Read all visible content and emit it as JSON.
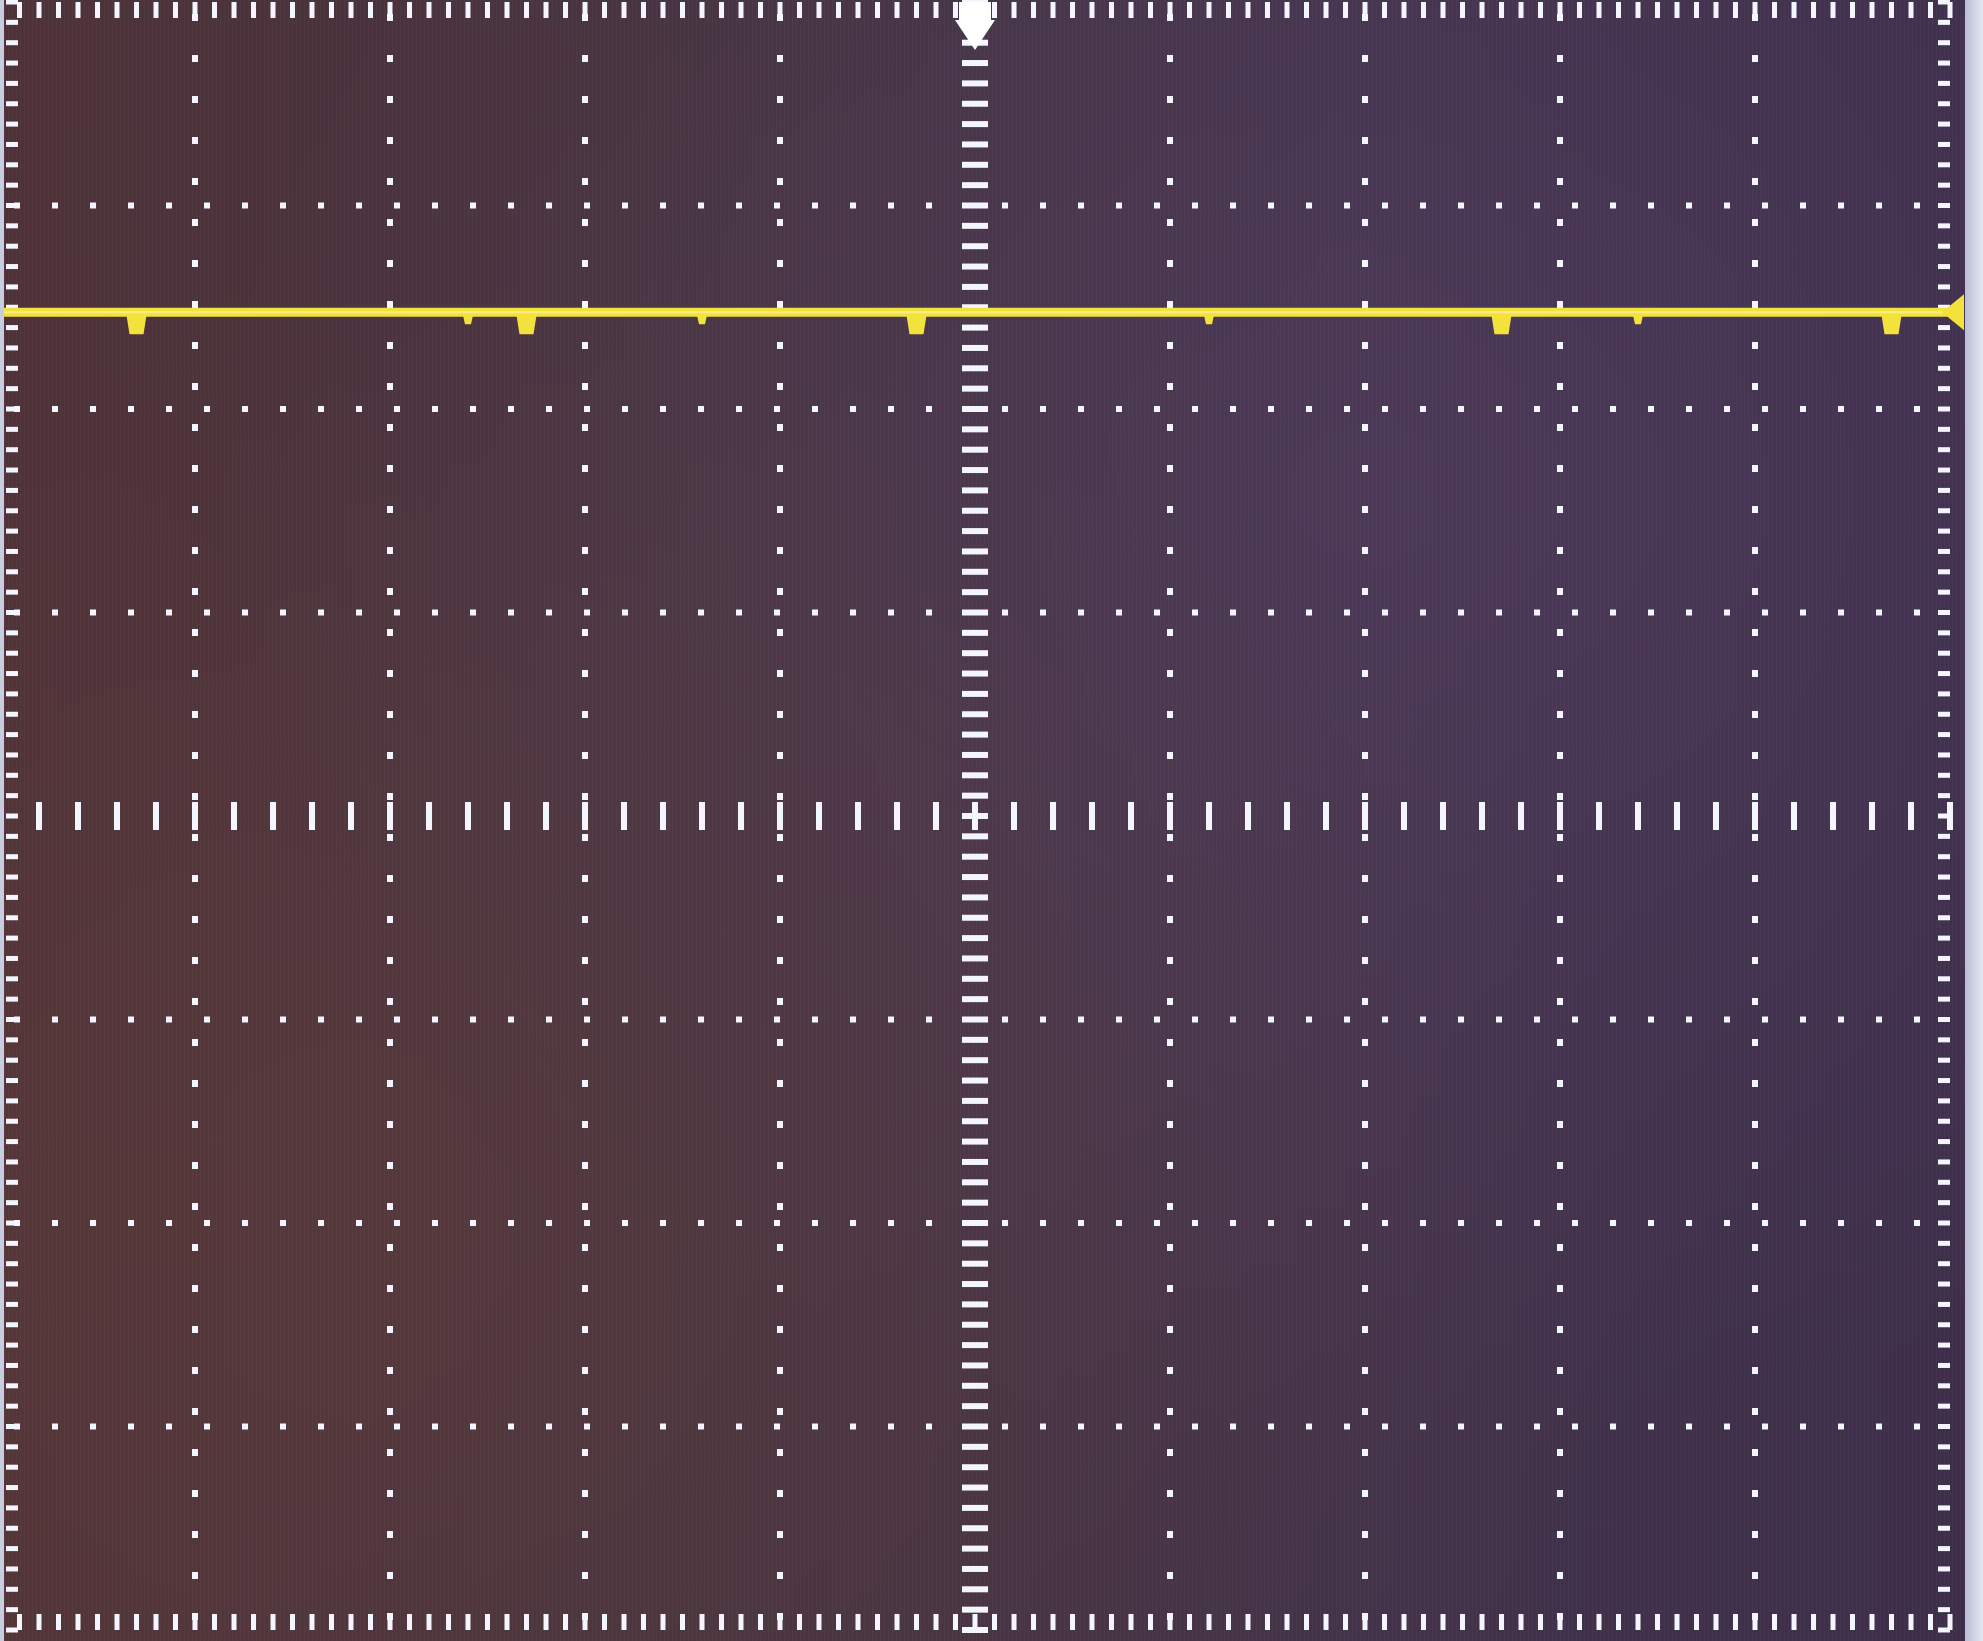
{
  "display": {
    "grid_divisions_x": 10,
    "grid_divisions_y": 8,
    "minor_ticks_per_division": 5,
    "graticule_color": "#f4f6ff",
    "background_color": "#45323f"
  },
  "trigger": {
    "marker_icon": "trigger-position-arrow-down",
    "horizontal_position_div": 5.0
  },
  "channels": [
    {
      "id": "CH1",
      "trace_color": "#f3e23a",
      "level_div_from_top": 1.5,
      "ground_marker_icon": "channel-level-arrow-left",
      "glitch_positions_div": [
        0.7,
        2.7,
        4.7,
        7.7,
        9.7
      ],
      "minor_dip_positions_div": [
        2.4,
        3.6,
        6.2,
        8.4
      ]
    }
  ]
}
